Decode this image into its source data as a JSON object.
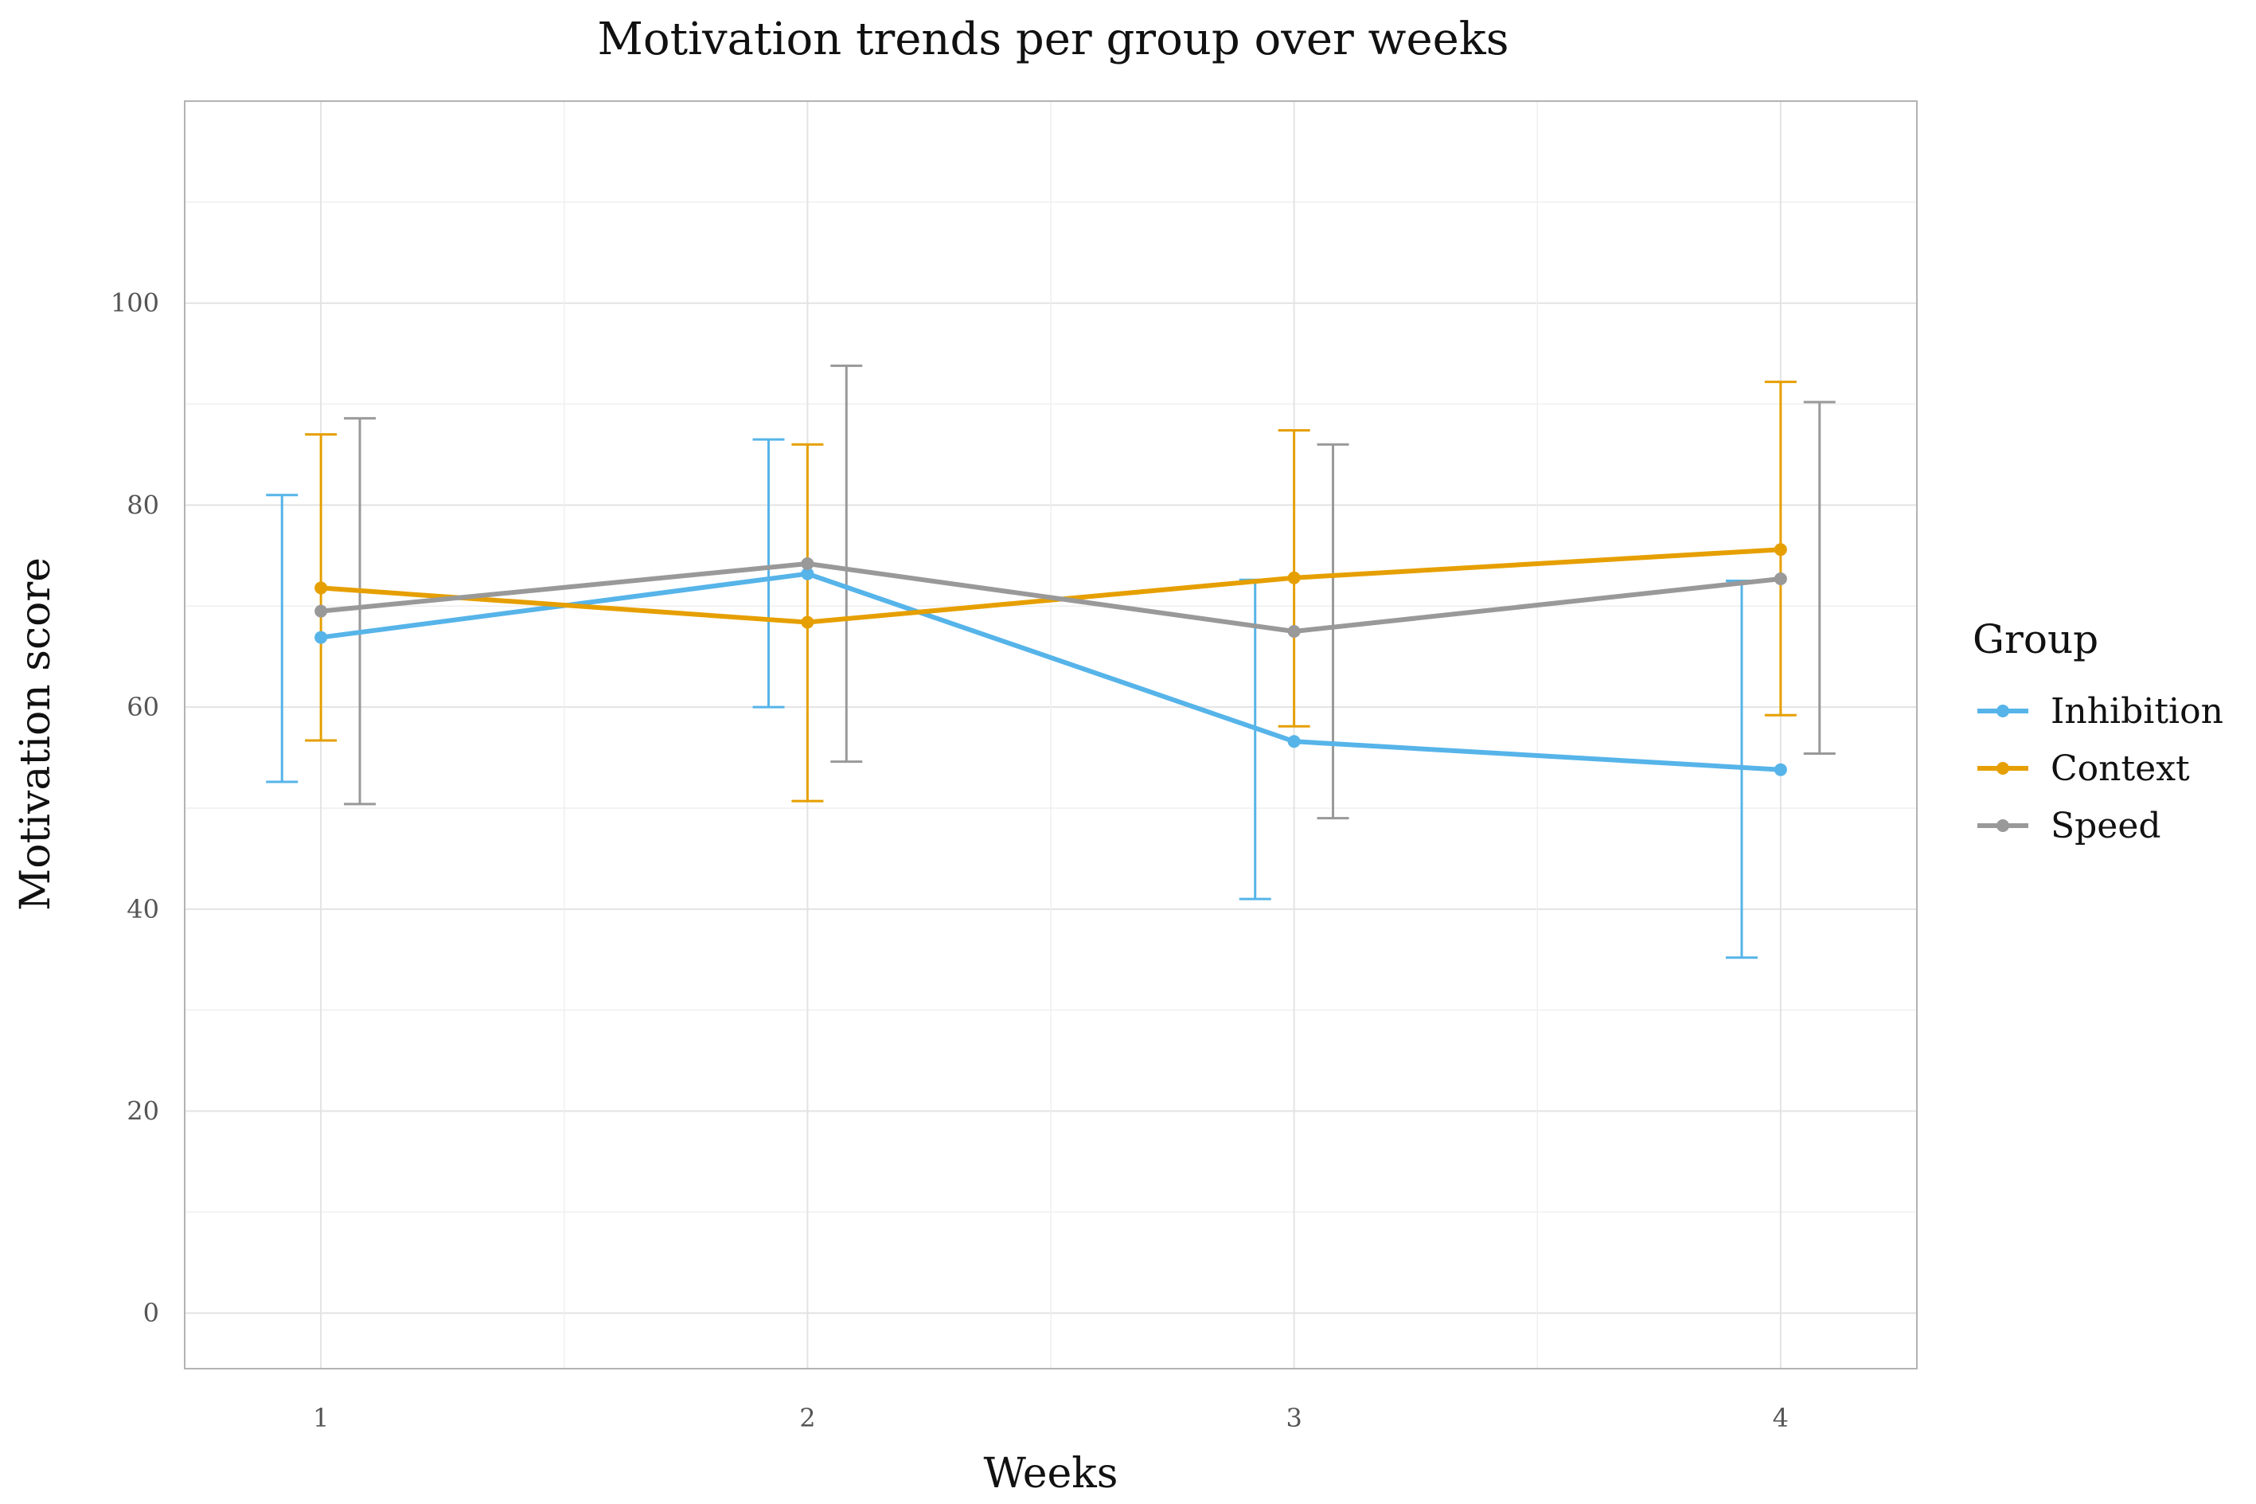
{
  "chart_data": {
    "type": "line",
    "title": "Motivation trends per group over weeks",
    "xlabel": "Weeks",
    "ylabel": "Motivation score",
    "x": [
      1,
      2,
      3,
      4
    ],
    "x_ticks": [
      "1",
      "2",
      "3",
      "4"
    ],
    "y_ticks": [
      "0",
      "20",
      "40",
      "60",
      "80",
      "100"
    ],
    "xlim": [
      0.72,
      4.28
    ],
    "ylim": [
      -5.5,
      120
    ],
    "grid": true,
    "legend_title": "Group",
    "legend_position": "right",
    "series": [
      {
        "name": "Inhibition",
        "color": "#56B4E9",
        "offset": -0.08,
        "values": [
          66.9,
          73.2,
          56.6,
          53.8
        ],
        "err_low": [
          52.6,
          60.0,
          41.0,
          35.2
        ],
        "err_high": [
          81.0,
          86.5,
          72.6,
          72.5
        ]
      },
      {
        "name": "Context",
        "color": "#E69F00",
        "offset": 0.0,
        "values": [
          71.8,
          68.4,
          72.8,
          75.6
        ],
        "err_low": [
          56.7,
          50.7,
          58.1,
          59.2
        ],
        "err_high": [
          87.0,
          86.0,
          87.4,
          92.2
        ]
      },
      {
        "name": "Speed",
        "color": "#999999",
        "offset": 0.08,
        "values": [
          69.5,
          74.2,
          67.5,
          72.7
        ],
        "err_low": [
          50.4,
          54.6,
          49.0,
          55.4
        ],
        "err_high": [
          88.6,
          93.8,
          86.0,
          90.2
        ]
      }
    ]
  }
}
